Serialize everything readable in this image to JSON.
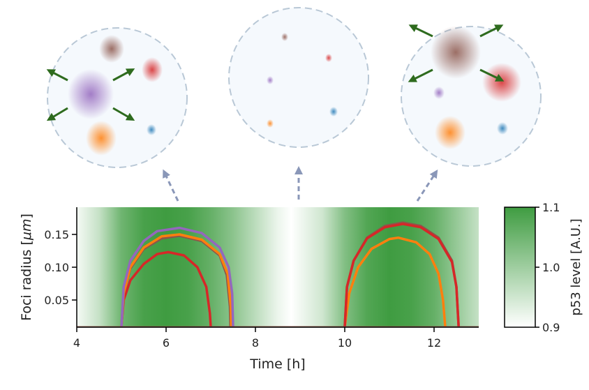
{
  "chart_data": {
    "type": "line",
    "xlabel": "Time [h]",
    "ylabel_parts": [
      "Foci radius [",
      "μm",
      "]"
    ],
    "xlim": [
      4,
      13
    ],
    "ylim": [
      0,
      0.19
    ],
    "xticks": [
      "4",
      "6",
      "8",
      "10",
      "12"
    ],
    "xtick_values": [
      4,
      6,
      8,
      10,
      12
    ],
    "yticks": [
      "0.05",
      "0.10",
      "0.15"
    ],
    "ytick_values": [
      0.05,
      0.1,
      0.15
    ],
    "baseline": 0.009,
    "series": [
      {
        "name": "purple-focus-1",
        "color": "#9467bd",
        "x": [
          5.0,
          5.05,
          5.2,
          5.5,
          5.8,
          6.3,
          6.8,
          7.2,
          7.4,
          7.48,
          7.5
        ],
        "y": [
          0.009,
          0.07,
          0.11,
          0.14,
          0.155,
          0.16,
          0.152,
          0.13,
          0.1,
          0.06,
          0.009
        ]
      },
      {
        "name": "orange-focus-1",
        "color": "#ff7f0e",
        "x": [
          5.0,
          5.05,
          5.2,
          5.5,
          5.9,
          6.3,
          6.8,
          7.2,
          7.38,
          7.45,
          7.46
        ],
        "y": [
          0.009,
          0.06,
          0.1,
          0.13,
          0.147,
          0.15,
          0.142,
          0.12,
          0.09,
          0.04,
          0.009
        ]
      },
      {
        "name": "brown-focus-1",
        "color": "#8c564b",
        "x": [
          5.0,
          5.05,
          5.2,
          5.5,
          5.9,
          6.3,
          6.8,
          7.2,
          7.36,
          7.43,
          7.44
        ],
        "y": [
          0.009,
          0.06,
          0.098,
          0.128,
          0.144,
          0.148,
          0.14,
          0.118,
          0.088,
          0.04,
          0.009
        ]
      },
      {
        "name": "red-focus-1",
        "color": "#d62728",
        "x": [
          5.0,
          5.05,
          5.2,
          5.5,
          5.8,
          6.05,
          6.4,
          6.7,
          6.9,
          6.98,
          7.0
        ],
        "y": [
          0.009,
          0.05,
          0.08,
          0.105,
          0.12,
          0.123,
          0.118,
          0.1,
          0.07,
          0.03,
          0.009
        ]
      },
      {
        "name": "red-focus-2",
        "color": "#d62728",
        "x": [
          10.0,
          10.05,
          10.2,
          10.5,
          10.9,
          11.3,
          11.7,
          12.1,
          12.4,
          12.5,
          12.55
        ],
        "y": [
          0.009,
          0.07,
          0.11,
          0.144,
          0.161,
          0.166,
          0.161,
          0.143,
          0.108,
          0.07,
          0.009
        ]
      },
      {
        "name": "brown-focus-2",
        "color": "#8c564b",
        "x": [
          10.0,
          10.05,
          10.2,
          10.5,
          10.9,
          11.3,
          11.7,
          12.1,
          12.4,
          12.5,
          12.55
        ],
        "y": [
          0.009,
          0.07,
          0.11,
          0.145,
          0.163,
          0.168,
          0.163,
          0.145,
          0.11,
          0.07,
          0.009
        ]
      },
      {
        "name": "orange-focus-2",
        "color": "#ff7f0e",
        "x": [
          10.0,
          10.1,
          10.3,
          10.6,
          11.0,
          11.2,
          11.6,
          11.9,
          12.1,
          12.2,
          12.25
        ],
        "y": [
          0.009,
          0.06,
          0.1,
          0.128,
          0.143,
          0.145,
          0.138,
          0.12,
          0.09,
          0.05,
          0.009
        ]
      },
      {
        "name": "blue-focus",
        "color": "#1f77b4",
        "x": [
          4.0,
          13.0
        ],
        "y": [
          0.009,
          0.009
        ]
      }
    ],
    "background": {
      "label": "p53 level [A.U.]",
      "range": [
        0.9,
        1.1
      ],
      "ticks": [
        "1.1",
        "1.0",
        "0.9"
      ],
      "color": "#3f9c41",
      "times": [
        4,
        4.5,
        5,
        5.5,
        6,
        6.5,
        7,
        7.5,
        8,
        8.5,
        8.8,
        9.5,
        10,
        10.5,
        11,
        11.5,
        12,
        12.5,
        13
      ],
      "levels": [
        0.91,
        0.96,
        1.05,
        1.09,
        1.1,
        1.09,
        1.06,
        1.02,
        0.97,
        0.92,
        0.9,
        0.95,
        1.03,
        1.08,
        1.1,
        1.09,
        1.06,
        1.01,
        0.96
      ]
    },
    "cells": [
      {
        "name": "cell-growing",
        "foci": [
          {
            "color": "#8c564b",
            "r": "medium"
          },
          {
            "color": "#d62728",
            "r": "small"
          },
          {
            "color": "#9467bd",
            "r": "large",
            "growing": true
          },
          {
            "color": "#ff7f0e",
            "r": "medium"
          },
          {
            "color": "#1f77b4",
            "r": "tiny"
          }
        ]
      },
      {
        "name": "cell-dissolved"
      },
      {
        "name": "cell-regrowing"
      }
    ]
  }
}
